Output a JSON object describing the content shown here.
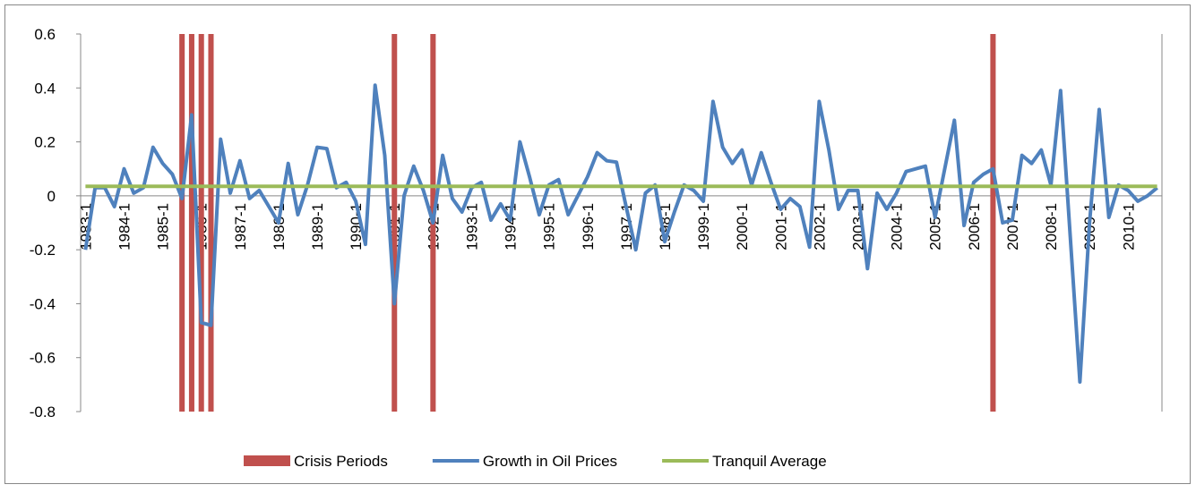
{
  "chart_data": {
    "type": "line",
    "categories": [
      "1983-1",
      null,
      null,
      null,
      "1984-1",
      null,
      null,
      null,
      "1985-1",
      null,
      null,
      null,
      "1986-1",
      null,
      null,
      null,
      "1987-1",
      null,
      null,
      null,
      "1988-1",
      null,
      null,
      null,
      "1989-1",
      null,
      null,
      null,
      "1990-1",
      null,
      null,
      null,
      "1991-1",
      null,
      null,
      null,
      "1992-1",
      null,
      null,
      null,
      "1993-1",
      null,
      null,
      null,
      "1994-1",
      null,
      null,
      null,
      "1995-1",
      null,
      null,
      null,
      "1996-1",
      null,
      null,
      null,
      "1997-1",
      null,
      null,
      null,
      "1998-1",
      null,
      null,
      null,
      "1999-1",
      null,
      null,
      null,
      "2000-1",
      null,
      null,
      null,
      "2001-1",
      null,
      null,
      null,
      "2002-1",
      null,
      null,
      null,
      "2003-1",
      null,
      null,
      null,
      "2004-1",
      null,
      null,
      null,
      "2005-1",
      null,
      null,
      null,
      "2006-1",
      null,
      null,
      null,
      "2007-1",
      null,
      null,
      null,
      "2008-1",
      null,
      null,
      null,
      "2009-1",
      null,
      null,
      null,
      "2010-1",
      null,
      null,
      null
    ],
    "series": [
      {
        "name": "Crisis Periods",
        "type": "bar",
        "axis": "y2",
        "color": "#c0504d",
        "values": [
          null,
          null,
          null,
          null,
          null,
          null,
          null,
          null,
          null,
          null,
          1,
          1,
          1,
          1,
          null,
          null,
          null,
          null,
          null,
          null,
          null,
          null,
          null,
          null,
          null,
          null,
          null,
          null,
          null,
          null,
          null,
          null,
          1,
          null,
          null,
          null,
          1,
          null,
          null,
          null,
          null,
          null,
          null,
          null,
          null,
          null,
          null,
          null,
          null,
          null,
          null,
          null,
          null,
          null,
          null,
          null,
          null,
          null,
          null,
          null,
          null,
          null,
          null,
          null,
          null,
          null,
          null,
          null,
          null,
          null,
          null,
          null,
          null,
          null,
          null,
          null,
          null,
          null,
          null,
          null,
          null,
          null,
          null,
          null,
          null,
          null,
          null,
          null,
          null,
          null,
          null,
          null,
          null,
          null,
          1,
          null,
          null,
          null,
          null,
          null,
          null,
          null,
          null,
          null,
          null,
          null,
          null,
          null,
          null,
          null,
          null,
          null
        ]
      },
      {
        "name": "Growth in Oil Prices",
        "type": "line",
        "color": "#4f81bd",
        "values": [
          -0.2,
          0.03,
          0.03,
          -0.04,
          0.1,
          0.01,
          0.03,
          0.18,
          0.12,
          0.08,
          -0.01,
          0.3,
          -0.47,
          -0.48,
          0.21,
          0.01,
          0.13,
          -0.01,
          0.02,
          -0.04,
          -0.1,
          0.12,
          -0.07,
          0.04,
          0.18,
          0.175,
          0.03,
          0.05,
          -0.02,
          -0.18,
          0.41,
          0.15,
          -0.4,
          0.0,
          0.11,
          0.02,
          -0.1,
          0.15,
          -0.01,
          -0.06,
          0.03,
          0.05,
          -0.09,
          -0.03,
          -0.09,
          0.2,
          0.07,
          -0.07,
          0.04,
          0.06,
          -0.07,
          0.0,
          0.07,
          0.16,
          0.13,
          0.125,
          -0.04,
          -0.2,
          0.01,
          0.04,
          -0.17,
          -0.06,
          0.04,
          0.02,
          -0.02,
          0.35,
          0.18,
          0.12,
          0.17,
          0.04,
          0.16,
          0.05,
          -0.05,
          -0.01,
          -0.04,
          -0.19,
          0.35,
          0.17,
          -0.05,
          0.02,
          0.02,
          -0.27,
          0.01,
          -0.05,
          0.01,
          0.09,
          0.1,
          0.11,
          -0.08,
          0.1,
          0.28,
          -0.11,
          0.05,
          0.08,
          0.1,
          -0.1,
          -0.09,
          0.15,
          0.12,
          0.17,
          0.04,
          0.39,
          -0.15,
          -0.69,
          -0.1,
          0.32,
          -0.08,
          0.04,
          0.02,
          -0.02,
          0.0,
          0.03
        ]
      },
      {
        "name": "Tranquil Average",
        "type": "line",
        "color": "#9bbb59",
        "values": [
          0.035,
          0.035,
          0.035,
          0.035,
          0.035,
          0.035,
          0.035,
          0.035,
          0.035,
          0.035,
          0.035,
          0.035,
          0.035,
          0.035,
          0.035,
          0.035,
          0.035,
          0.035,
          0.035,
          0.035,
          0.035,
          0.035,
          0.035,
          0.035,
          0.035,
          0.035,
          0.035,
          0.035,
          0.035,
          0.035,
          0.035,
          0.035,
          0.035,
          0.035,
          0.035,
          0.035,
          0.035,
          0.035,
          0.035,
          0.035,
          0.035,
          0.035,
          0.035,
          0.035,
          0.035,
          0.035,
          0.035,
          0.035,
          0.035,
          0.035,
          0.035,
          0.035,
          0.035,
          0.035,
          0.035,
          0.035,
          0.035,
          0.035,
          0.035,
          0.035,
          0.035,
          0.035,
          0.035,
          0.035,
          0.035,
          0.035,
          0.035,
          0.035,
          0.035,
          0.035,
          0.035,
          0.035,
          0.035,
          0.035,
          0.035,
          0.035,
          0.035,
          0.035,
          0.035,
          0.035,
          0.035,
          0.035,
          0.035,
          0.035,
          0.035,
          0.035,
          0.035,
          0.035,
          0.035,
          0.035,
          0.035,
          0.035,
          0.035,
          0.035,
          0.035,
          0.035,
          0.035,
          0.035,
          0.035,
          0.035,
          0.035,
          0.035,
          0.035,
          0.035,
          0.035,
          0.035,
          0.035,
          0.035,
          0.035,
          0.035,
          0.035,
          0.035
        ]
      }
    ],
    "ylim": [
      -0.8,
      0.6
    ],
    "yticks": [
      -0.8,
      -0.6,
      -0.4,
      -0.2,
      0,
      0.2,
      0.4,
      0.6
    ],
    "y2lim": [
      0,
      1
    ],
    "legend": "bottom"
  }
}
